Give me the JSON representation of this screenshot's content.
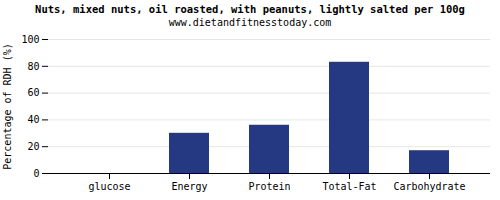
{
  "chart_data": {
    "type": "bar",
    "title": "Nuts, mixed nuts, oil roasted, with peanuts, lightly salted per 100g",
    "subtitle": "www.dietandfitnesstoday.com",
    "categories": [
      "glucose",
      "Energy",
      "Protein",
      "Total-Fat",
      "Carbohydrate"
    ],
    "values": [
      0,
      30,
      36,
      83,
      17
    ],
    "color": "#253882",
    "ylabel": "Percentage of RDH (%)",
    "ylim": [
      0,
      100
    ],
    "yticks": [
      0,
      20,
      40,
      60,
      80,
      100
    ],
    "grid": true
  }
}
